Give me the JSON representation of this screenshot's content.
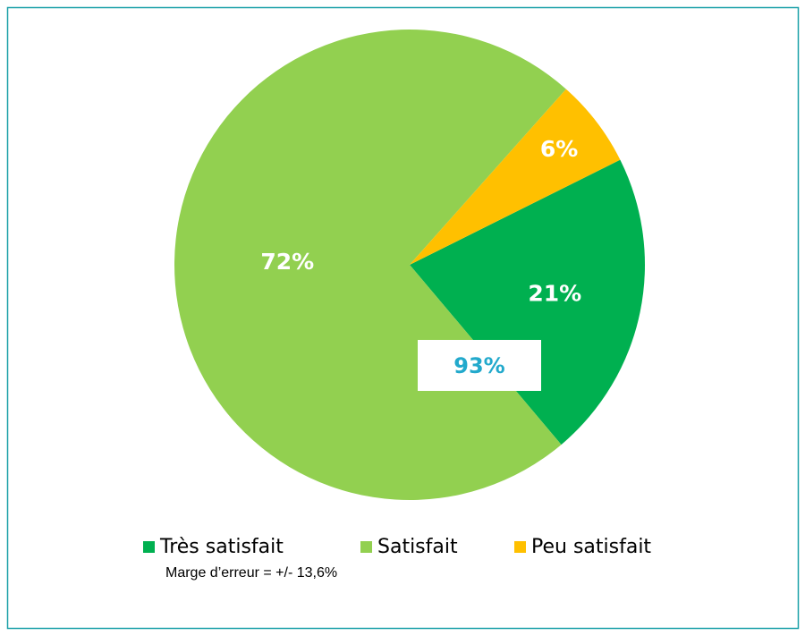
{
  "chart_data": {
    "type": "pie",
    "categories": [
      "Très satisfait",
      "Satisfait",
      "Peu satisfait"
    ],
    "values": [
      21,
      72,
      6
    ],
    "value_labels": [
      "21%",
      "72%",
      "6%"
    ],
    "colors": [
      "#00b050",
      "#92d050",
      "#ffc000"
    ],
    "legend": "bottom",
    "annotation": "93%",
    "note": "Marge d’erreur  = +/- 13,6%"
  }
}
